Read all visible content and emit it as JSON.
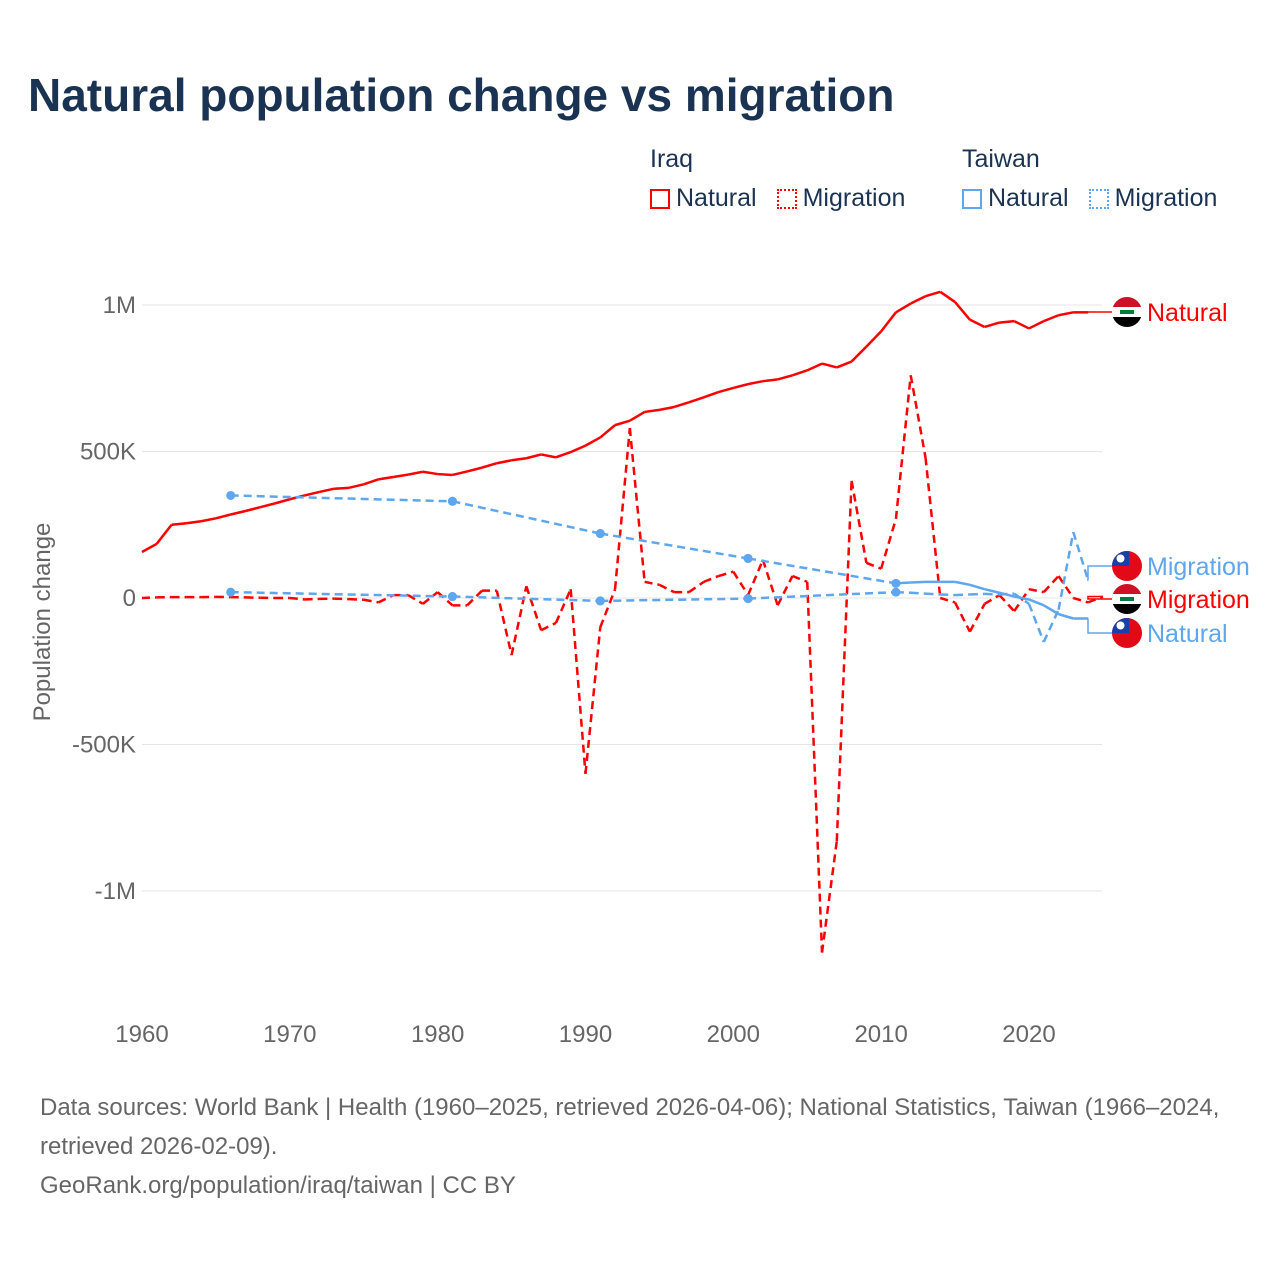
{
  "title": "Natural population change vs migration",
  "legend": {
    "groups": [
      {
        "country": "Iraq",
        "color": "#ff0000",
        "items": [
          "Natural",
          "Migration"
        ]
      },
      {
        "country": "Taiwan",
        "color": "#5ea6ee",
        "items": [
          "Natural",
          "Migration"
        ]
      }
    ]
  },
  "source": {
    "line1": "Data sources: World Bank | Health (1960–2025, retrieved 2026-04-06); National Statistics, Taiwan (1966–2024, retrieved 2026-02-09).",
    "line2": "GeoRank.org/population/iraq/taiwan | CC BY"
  },
  "chart_data": {
    "type": "line",
    "title": "Natural population change vs migration",
    "xlabel": "",
    "ylabel": "Population change",
    "xlim": [
      1960,
      2025
    ],
    "ylim": [
      -1300000,
      1100000
    ],
    "x_ticks": [
      1960,
      1970,
      1980,
      1990,
      2000,
      2010,
      2020
    ],
    "y_ticks": [
      {
        "value": 1000000,
        "label": "1M"
      },
      {
        "value": 500000,
        "label": "500K"
      },
      {
        "value": 0,
        "label": "0"
      },
      {
        "value": -500000,
        "label": "-500K"
      },
      {
        "value": -1000000,
        "label": "-1M"
      }
    ],
    "grid": true,
    "legend_position": "top-right",
    "series": [
      {
        "name": "Iraq Natural",
        "end_label": "Natural",
        "country": "Iraq",
        "color": "#ff0000",
        "style": "solid",
        "x": [
          1960,
          1961,
          1962,
          1963,
          1964,
          1965,
          1966,
          1967,
          1968,
          1969,
          1970,
          1971,
          1972,
          1973,
          1974,
          1975,
          1976,
          1977,
          1978,
          1979,
          1980,
          1981,
          1982,
          1983,
          1984,
          1985,
          1986,
          1987,
          1988,
          1989,
          1990,
          1991,
          1992,
          1993,
          1994,
          1995,
          1996,
          1997,
          1998,
          1999,
          2000,
          2001,
          2002,
          2003,
          2004,
          2005,
          2006,
          2007,
          2008,
          2009,
          2010,
          2011,
          2012,
          2013,
          2014,
          2015,
          2016,
          2017,
          2018,
          2019,
          2020,
          2021,
          2022,
          2023,
          2024
        ],
        "y": [
          157000,
          185000,
          250000,
          255000,
          262000,
          272000,
          285000,
          297000,
          310000,
          323000,
          337000,
          350000,
          362000,
          373000,
          376000,
          388000,
          405000,
          413000,
          421000,
          431000,
          423000,
          420000,
          432000,
          445000,
          460000,
          470000,
          477000,
          490000,
          480000,
          498000,
          520000,
          548000,
          590000,
          605000,
          635000,
          642000,
          652000,
          668000,
          685000,
          703000,
          717000,
          730000,
          740000,
          746000,
          760000,
          777000,
          800000,
          787000,
          807000,
          858000,
          910000,
          975000,
          1005000,
          1030000,
          1045000,
          1010000,
          950000,
          925000,
          940000,
          945000,
          920000,
          945000,
          965000,
          975000,
          975000
        ]
      },
      {
        "name": "Iraq Migration",
        "end_label": "Migration",
        "country": "Iraq",
        "color": "#ff0000",
        "style": "dashed",
        "x": [
          1960,
          1961,
          1962,
          1963,
          1964,
          1965,
          1966,
          1967,
          1968,
          1969,
          1970,
          1971,
          1972,
          1973,
          1974,
          1975,
          1976,
          1977,
          1978,
          1979,
          1980,
          1981,
          1982,
          1983,
          1984,
          1985,
          1986,
          1987,
          1988,
          1989,
          1990,
          1991,
          1992,
          1993,
          1994,
          1995,
          1996,
          1997,
          1998,
          1999,
          2000,
          2001,
          2002,
          2003,
          2004,
          2005,
          2006,
          2007,
          2008,
          2009,
          2010,
          2011,
          2012,
          2013,
          2014,
          2015,
          2016,
          2017,
          2018,
          2019,
          2020,
          2021,
          2022,
          2023,
          2024,
          2025
        ],
        "y": [
          0,
          2000,
          3000,
          3000,
          3000,
          4000,
          3000,
          2000,
          1000,
          0,
          0,
          -5000,
          -3000,
          -2000,
          -4000,
          -6000,
          -15000,
          10000,
          10000,
          -20000,
          20000,
          -25000,
          -25000,
          25000,
          25000,
          -195000,
          40000,
          -110000,
          -85000,
          30000,
          -600000,
          -100000,
          30000,
          580000,
          55000,
          45000,
          20000,
          20000,
          55000,
          75000,
          90000,
          10000,
          130000,
          -25000,
          75000,
          55000,
          -1210000,
          -830000,
          400000,
          120000,
          100000,
          270000,
          760000,
          480000,
          0,
          -15000,
          -115000,
          -20000,
          10000,
          -45000,
          30000,
          20000,
          75000,
          0,
          -15000,
          5000
        ]
      },
      {
        "name": "Taiwan Natural",
        "end_label": "Natural",
        "country": "Taiwan",
        "color": "#5ea6ee",
        "style": "solid",
        "x": [
          1966,
          1981,
          1991,
          2001,
          2011,
          2012,
          2013,
          2014,
          2015,
          2016,
          2017,
          2018,
          2019,
          2020,
          2021,
          2022,
          2023,
          2024
        ],
        "y": [
          350000,
          330000,
          220000,
          135000,
          50000,
          53000,
          55000,
          55000,
          55000,
          45000,
          30000,
          18000,
          5000,
          -5000,
          -25000,
          -55000,
          -70000,
          -70000
        ]
      },
      {
        "name": "Taiwan Migration",
        "end_label": "Migration",
        "country": "Taiwan",
        "color": "#5ea6ee",
        "style": "dashed",
        "x": [
          1966,
          1981,
          1991,
          2001,
          2011,
          2012,
          2013,
          2014,
          2015,
          2016,
          2017,
          2018,
          2019,
          2020,
          2021,
          2022,
          2023,
          2024
        ],
        "y": [
          20000,
          5000,
          -10000,
          -2000,
          20000,
          18000,
          15000,
          12000,
          10000,
          12000,
          14000,
          12000,
          15000,
          -20000,
          -150000,
          -40000,
          225000,
          60000
        ]
      }
    ]
  }
}
